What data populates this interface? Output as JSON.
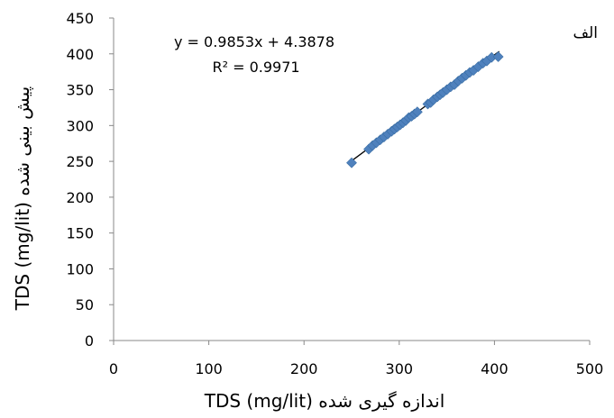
{
  "chart_data": {
    "type": "scatter",
    "panel_label": "الف",
    "xlabel": "TDS (mg/lit) اندازه گیری شده",
    "ylabel": "TDS (mg/lit) پیش بینی شده",
    "xlim": [
      0,
      500
    ],
    "ylim": [
      0,
      450
    ],
    "xticks": [
      "0",
      "100",
      "200",
      "300",
      "400",
      "500"
    ],
    "yticks": [
      "0",
      "50",
      "100",
      "150",
      "200",
      "250",
      "300",
      "350",
      "400",
      "450"
    ],
    "grid": false,
    "marker_color": "#4f81bd",
    "trendline_color": "#000000",
    "trendline": {
      "equation": "y = 0.9853x + 4.3878",
      "r2": "R² = 0.9971",
      "slope": 0.9853,
      "intercept": 4.3878,
      "x_range": [
        250,
        405
      ]
    },
    "points": [
      {
        "x": 250,
        "y": 248
      },
      {
        "x": 268,
        "y": 267
      },
      {
        "x": 272,
        "y": 272
      },
      {
        "x": 276,
        "y": 276
      },
      {
        "x": 280,
        "y": 280
      },
      {
        "x": 284,
        "y": 284
      },
      {
        "x": 288,
        "y": 288
      },
      {
        "x": 292,
        "y": 292
      },
      {
        "x": 295,
        "y": 295
      },
      {
        "x": 298,
        "y": 298
      },
      {
        "x": 301,
        "y": 301
      },
      {
        "x": 304,
        "y": 304
      },
      {
        "x": 307,
        "y": 307
      },
      {
        "x": 310,
        "y": 311
      },
      {
        "x": 313,
        "y": 313
      },
      {
        "x": 316,
        "y": 316
      },
      {
        "x": 319,
        "y": 319
      },
      {
        "x": 330,
        "y": 330
      },
      {
        "x": 333,
        "y": 332
      },
      {
        "x": 336,
        "y": 336
      },
      {
        "x": 340,
        "y": 340
      },
      {
        "x": 343,
        "y": 343
      },
      {
        "x": 346,
        "y": 346
      },
      {
        "x": 350,
        "y": 350
      },
      {
        "x": 354,
        "y": 354
      },
      {
        "x": 358,
        "y": 357
      },
      {
        "x": 362,
        "y": 362
      },
      {
        "x": 366,
        "y": 366
      },
      {
        "x": 370,
        "y": 370
      },
      {
        "x": 374,
        "y": 374
      },
      {
        "x": 378,
        "y": 377
      },
      {
        "x": 383,
        "y": 382
      },
      {
        "x": 388,
        "y": 387
      },
      {
        "x": 392,
        "y": 390
      },
      {
        "x": 397,
        "y": 395
      },
      {
        "x": 404,
        "y": 396
      }
    ]
  }
}
